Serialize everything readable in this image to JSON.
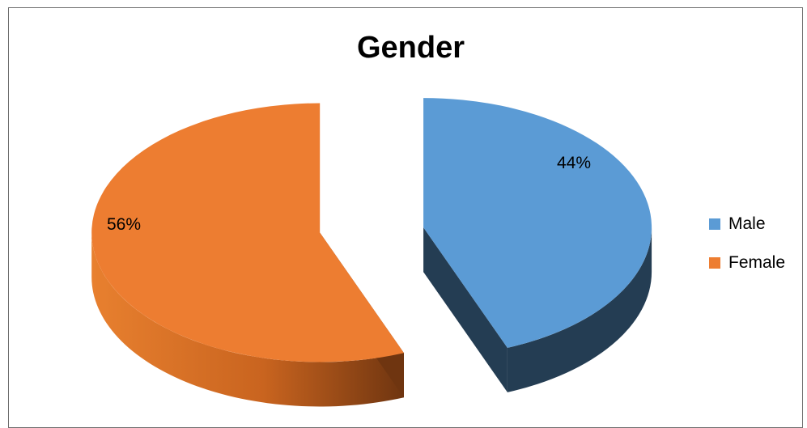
{
  "chart_data": {
    "type": "pie",
    "title": "Gender",
    "categories": [
      "Male",
      "Female"
    ],
    "values": [
      44,
      56
    ],
    "data_labels": [
      "44%",
      "56%"
    ],
    "colors": [
      "#5b9bd5",
      "#ed7d31"
    ],
    "side_colors": [
      "#243d53",
      "#7a3a10"
    ],
    "legend_position": "right",
    "style": "3d-exploded"
  }
}
